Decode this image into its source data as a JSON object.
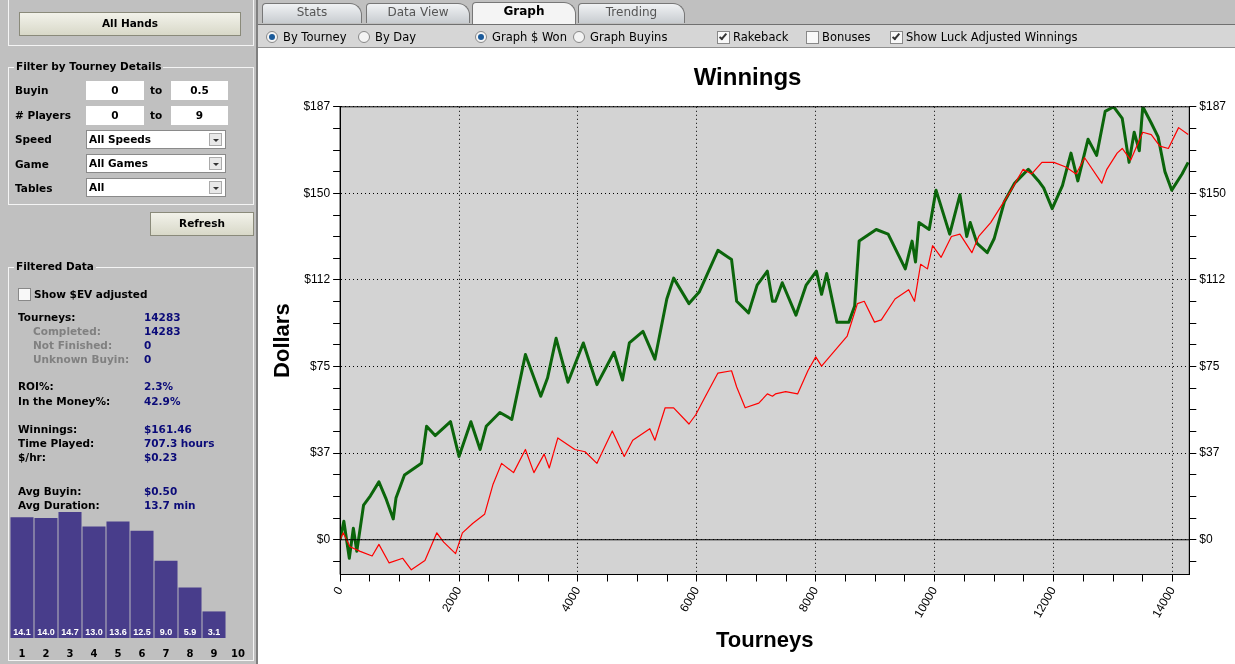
{
  "chart_data": [
    {
      "type": "other",
      "annotations": [
        "All Hands",
        "Filter by Tourney Details",
        "Buyin",
        "0",
        "to",
        "0.5",
        "# Players",
        "0",
        "to",
        "9",
        "Speed",
        "All Speeds",
        "Game",
        "All Games",
        "Tables",
        "All",
        "Refresh",
        "Filtered Data",
        "Show $EV adjusted",
        "Tourneys:",
        "14283",
        "Completed:",
        "14283",
        "Not Finished:",
        "0",
        "Unknown Buyin:",
        "0",
        "ROI%:",
        "2.3%",
        "In the Money%:",
        "42.9%",
        "Winnings:",
        "$161.46",
        "Time Played:",
        "707.3 hours",
        "$/hr:",
        "$0.23",
        "Avg Buyin:",
        "$0.50",
        "Avg Duration:",
        "13.7 min",
        "Stats",
        "Data View",
        "Graph",
        "Trending",
        "By Tourney",
        "By Day",
        "Graph $ Won",
        "Graph Buyins",
        "Rakeback",
        "Bonuses",
        "Show Luck Adjusted Winnings"
      ]
    },
    {
      "type": "bar",
      "categories": [
        "1",
        "2",
        "3",
        "4",
        "5",
        "6",
        "7",
        "8",
        "9",
        "10"
      ],
      "values": [
        14.1,
        14.0,
        14.7,
        13.0,
        13.6,
        12.5,
        9.0,
        5.9,
        3.1,
        null
      ],
      "value_labels": [
        "14.1",
        "14.0",
        "14.7",
        "13.0",
        "13.6",
        "12.5",
        "9.0",
        "5.9",
        "3.1",
        null
      ],
      "color": "#483d8b"
    },
    {
      "type": "line",
      "title": "Winnings",
      "xlabel": "Tourneys",
      "ylabel": "Dollars",
      "grid": true,
      "legend": false,
      "marker": "none",
      "line_style": "solid",
      "xlim": [
        0,
        14283
      ],
      "xticks": [
        0,
        {
          "value": 500,
          "label": null
        },
        {
          "value": 1000,
          "label": null
        },
        {
          "value": 1500,
          "label": null
        },
        2000,
        {
          "value": 2500,
          "label": null
        },
        {
          "value": 3000,
          "label": null
        },
        {
          "value": 3500,
          "label": null
        },
        4000,
        {
          "value": 4500,
          "label": null
        },
        {
          "value": 5000,
          "label": null
        },
        {
          "value": 5500,
          "label": null
        },
        6000,
        {
          "value": 6500,
          "label": null
        },
        {
          "value": 7000,
          "label": null
        },
        {
          "value": 7500,
          "label": null
        },
        8000,
        {
          "value": 8500,
          "label": null
        },
        {
          "value": 9000,
          "label": null
        },
        {
          "value": 9500,
          "label": null
        },
        10000,
        {
          "value": 10500,
          "label": null
        },
        {
          "value": 11000,
          "label": null
        },
        {
          "value": 11500,
          "label": null
        },
        12000,
        {
          "value": 12500,
          "label": null
        },
        {
          "value": 13000,
          "label": null
        },
        {
          "value": 13500,
          "label": null
        },
        14000
      ],
      "ylim": [
        -15,
        187
      ],
      "yticks": [
        {
          "value": -9.35,
          "label": null
        },
        {
          "value": 0,
          "label": "$0"
        },
        {
          "value": 9.35,
          "label": null
        },
        {
          "value": 18.7,
          "label": null
        },
        {
          "value": 28.05,
          "label": null
        },
        {
          "value": 37.4,
          "label": "$37"
        },
        {
          "value": 46.75,
          "label": null
        },
        {
          "value": 56.1,
          "label": null
        },
        {
          "value": 65.45,
          "label": null
        },
        {
          "value": 74.8,
          "label": "$75"
        },
        {
          "value": 84.15,
          "label": null
        },
        {
          "value": 93.5,
          "label": null
        },
        {
          "value": 102.85,
          "label": null
        },
        {
          "value": 112.2,
          "label": "$112"
        },
        {
          "value": 121.55,
          "label": null
        },
        {
          "value": 130.9,
          "label": null
        },
        {
          "value": 140.25,
          "label": null
        },
        {
          "value": 149.6,
          "label": "$150"
        },
        {
          "value": 158.95,
          "label": null
        },
        {
          "value": 168.3,
          "label": null
        },
        {
          "value": 177.65,
          "label": null
        },
        {
          "value": 187,
          "label": "$187"
        }
      ],
      "y2lim": [
        -15,
        187
      ],
      "y2ticks": [
        {
          "value": -9.35,
          "label": null
        },
        {
          "value": 0,
          "label": "$0"
        },
        {
          "value": 9.35,
          "label": null
        },
        {
          "value": 18.7,
          "label": null
        },
        {
          "value": 28.05,
          "label": null
        },
        {
          "value": 37.4,
          "label": "$37"
        },
        {
          "value": 46.75,
          "label": null
        },
        {
          "value": 56.1,
          "label": null
        },
        {
          "value": 65.45,
          "label": null
        },
        {
          "value": 74.8,
          "label": "$75"
        },
        {
          "value": 84.15,
          "label": null
        },
        {
          "value": 93.5,
          "label": null
        },
        {
          "value": 102.85,
          "label": null
        },
        {
          "value": 112.2,
          "label": "$112"
        },
        {
          "value": 121.55,
          "label": null
        },
        {
          "value": 130.9,
          "label": null
        },
        {
          "value": 140.25,
          "label": null
        },
        {
          "value": 149.6,
          "label": "$150"
        },
        {
          "value": 158.95,
          "label": null
        },
        {
          "value": 168.3,
          "label": null
        },
        {
          "value": 177.65,
          "label": null
        },
        {
          "value": 187,
          "label": "$187"
        }
      ],
      "ref_lines": [
        {
          "axis": "y",
          "value": 0,
          "color": "#000000"
        }
      ],
      "series": [
        {
          "color": "#0b650b",
          "x": [
            0,
            63,
            155,
            223,
            281,
            395,
            510,
            653,
            768,
            894,
            940,
            1083,
            1369,
            1455,
            1599,
            1857,
            2000,
            2200,
            2355,
            2458,
            2687,
            2888,
            3117,
            3375,
            3490,
            3633,
            3833,
            4091,
            4320,
            4607,
            4750,
            4865,
            5094,
            5295,
            5495,
            5610,
            5868,
            6040,
            6355,
            6584,
            6670,
            6870,
            7014,
            7186,
            7272,
            7322,
            7437,
            7667,
            7839,
            8011,
            8098,
            8184,
            8356,
            8557,
            8655,
            8730,
            9017,
            9218,
            9506,
            9620,
            9678,
            9736,
            9908,
            10023,
            10253,
            10425,
            10540,
            10598,
            10713,
            10885,
            11000,
            11172,
            11344,
            11575,
            11747,
            11833,
            11977,
            12149,
            12293,
            12408,
            12580,
            12724,
            12868,
            13011,
            13155,
            13270,
            13356,
            13442,
            13500,
            13643,
            13758,
            13873,
            13988,
            14161,
            14264
          ],
          "values": [
            0,
            8,
            -8,
            5,
            -5,
            15,
            19,
            25,
            18,
            9,
            18,
            28,
            33,
            49,
            45,
            51,
            36,
            51,
            39,
            49,
            55,
            52,
            80,
            62,
            70,
            87,
            68,
            85,
            67,
            81,
            69,
            85,
            90,
            78,
            104,
            113,
            102,
            107,
            125,
            121,
            103,
            98,
            110,
            116,
            103,
            103,
            111,
            97,
            110,
            116,
            106,
            115,
            94,
            94,
            101,
            129,
            134,
            132,
            117,
            129,
            120,
            137,
            134,
            151,
            132,
            149,
            131,
            137,
            128,
            124,
            130,
            146,
            154,
            160,
            155,
            152,
            143,
            153,
            167,
            155,
            173,
            166,
            185,
            187,
            182,
            163,
            176,
            168,
            187,
            180,
            174,
            159,
            151,
            158,
            163
          ]
        },
        {
          "color": "#ff0000",
          "x": [
            0,
            52,
            166,
            338,
            539,
            653,
            825,
            1054,
            1198,
            1427,
            1627,
            1742,
            1942,
            2057,
            2229,
            2430,
            2573,
            2716,
            2917,
            3117,
            3260,
            3432,
            3518,
            3662,
            3948,
            4120,
            4320,
            4578,
            4779,
            4922,
            5209,
            5295,
            5467,
            5610,
            5868,
            5982,
            6125,
            6355,
            6584,
            6670,
            6813,
            7042,
            7186,
            7272,
            7322,
            7494,
            7695,
            7868,
            8000,
            8098,
            8299,
            8529,
            8701,
            8816,
            8988,
            9103,
            9333,
            9563,
            9661,
            9764,
            9879,
            9965,
            10109,
            10282,
            10425,
            10626,
            10741,
            10943,
            11115,
            11287,
            11488,
            11632,
            11804,
            12005,
            12206,
            12379,
            12522,
            12810,
            12896,
            13069,
            13155,
            13298,
            13500,
            13643,
            13787,
            13931,
            14103,
            14264
          ],
          "values": [
            0,
            3,
            -3,
            -5,
            -7,
            -2,
            -10,
            -8,
            -13,
            -9,
            3,
            -1,
            -6,
            3,
            7,
            11,
            24,
            33,
            29,
            39,
            29,
            37,
            31,
            44,
            39,
            38,
            33,
            47,
            36,
            43,
            48,
            43,
            57,
            57,
            50,
            54,
            61,
            72,
            73,
            66,
            57,
            59,
            63,
            62,
            63,
            64,
            63,
            73,
            79,
            75,
            81,
            88,
            102,
            103,
            94,
            95,
            104,
            108,
            103,
            119,
            117,
            127,
            122,
            131,
            132,
            124,
            131,
            137,
            144,
            151,
            160,
            158,
            163,
            163,
            161,
            158,
            165,
            154,
            160,
            167,
            169,
            164,
            176,
            175,
            170,
            169,
            178,
            175
          ]
        }
      ]
    }
  ]
}
